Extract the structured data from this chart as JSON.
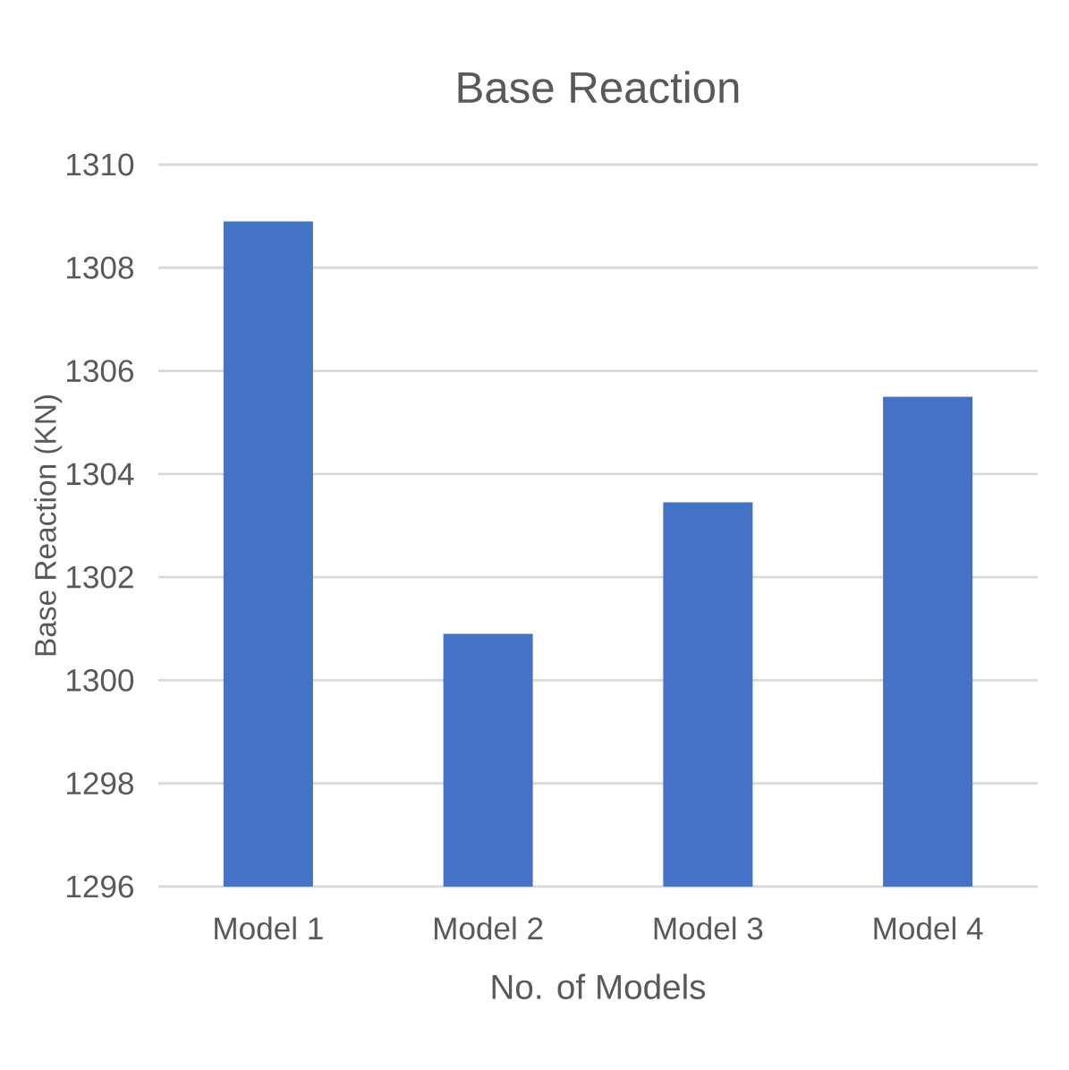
{
  "chart_data": {
    "type": "bar",
    "title": "Base Reaction",
    "xlabel": "No. of Models",
    "ylabel": "Base Reaction (KN)",
    "categories": [
      "Model 1",
      "Model 2",
      "Model 3",
      "Model 4"
    ],
    "values": [
      1308.9,
      1300.9,
      1303.45,
      1305.5
    ],
    "color": "#4472c4",
    "ylim": [
      1296,
      1310
    ],
    "yticks": [
      1296,
      1298,
      1300,
      1302,
      1304,
      1306,
      1308,
      1310
    ],
    "grid": "y"
  }
}
